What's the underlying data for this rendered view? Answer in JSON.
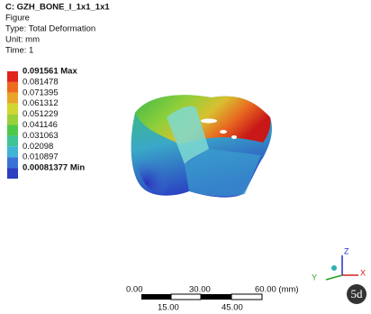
{
  "header": {
    "title": "C: GZH_BONE_I_1x1_1x1",
    "lines": [
      "Figure",
      "Type: Total Deformation",
      "Unit: mm",
      "Time: 1"
    ]
  },
  "legend": {
    "labels": [
      "0.091561 Max",
      "0.081478",
      "0.071395",
      "0.061312",
      "0.051229",
      "0.041146",
      "0.031063",
      "0.02098",
      "0.010897",
      "0.00081377 Min"
    ],
    "colors": [
      "#e0241c",
      "#ee6a1e",
      "#e9a52a",
      "#d2d631",
      "#9ad13a",
      "#4ec84a",
      "#3fc495",
      "#3fb3d6",
      "#3a72d6",
      "#2a3fc2"
    ]
  },
  "scale_bar": {
    "top_labels": [
      "0.00",
      "30.00",
      "60.00 (mm)"
    ],
    "bottom_labels": [
      "15.00",
      "45.00"
    ]
  },
  "triad": {
    "x": "X",
    "y": "Y",
    "z": "Z"
  },
  "logo": "5d"
}
